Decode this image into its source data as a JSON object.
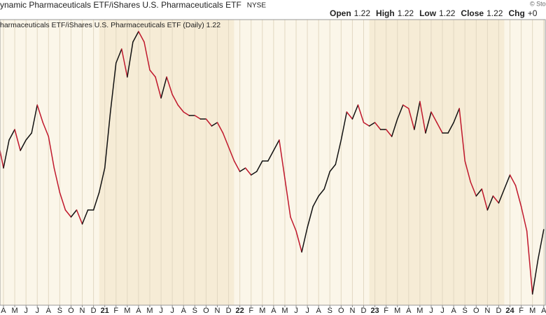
{
  "chart_data": {
    "type": "line",
    "title": "ynamic Pharmaceuticals ETF/iShares U.S. Pharmaceuticals ETF",
    "exchange": "NYSE",
    "quote": [
      {
        "label": "Open",
        "value": 1.22
      },
      {
        "label": "High",
        "value": 1.22
      },
      {
        "label": "Low",
        "value": 1.22
      },
      {
        "label": "Close",
        "value": 1.22
      },
      {
        "label": "Chg",
        "value": "+0"
      }
    ],
    "copyright": "© Sto",
    "legend_text": "harmaceuticals ETF/iShares U.S. Pharmaceuticals ETF (Daily) 1.22",
    "up_color": "#111111",
    "down_color": "#c0182c",
    "x": [
      -0.5,
      0,
      0.5,
      1,
      1.5,
      2,
      2.5,
      3,
      3.5,
      4,
      4.5,
      5,
      5.5,
      6,
      6.5,
      7,
      7.5,
      8,
      8.5,
      9,
      9.5,
      10,
      10.5,
      11,
      11.5,
      12,
      12.5,
      13,
      13.5,
      14,
      14.5,
      15,
      15.5,
      16,
      16.5,
      17,
      17.5,
      18,
      18.5,
      19,
      19.5,
      20,
      20.5,
      21,
      21.5,
      22,
      22.5,
      23,
      23.5,
      24,
      24.5,
      25,
      25.5,
      26,
      26.5,
      27,
      27.5,
      28,
      28.5,
      29,
      29.5,
      30,
      30.5,
      31,
      31.5,
      32,
      32.5,
      33,
      33.5,
      34,
      34.5,
      35,
      35.5,
      36,
      36.5,
      37,
      37.5,
      38,
      38.5,
      39,
      39.5,
      40,
      40.5,
      41,
      41.5,
      42,
      42.5,
      43,
      43.5,
      44,
      44.5,
      45,
      45.5,
      46,
      46.5,
      47,
      47.5,
      48
    ],
    "values": [
      1.348,
      1.308,
      1.348,
      1.363,
      1.333,
      1.348,
      1.358,
      1.398,
      1.373,
      1.353,
      1.308,
      1.273,
      1.248,
      1.238,
      1.248,
      1.228,
      1.248,
      1.248,
      1.273,
      1.308,
      1.388,
      1.458,
      1.478,
      1.438,
      1.488,
      1.503,
      1.488,
      1.448,
      1.438,
      1.408,
      1.438,
      1.413,
      1.398,
      1.388,
      1.383,
      1.383,
      1.378,
      1.378,
      1.368,
      1.373,
      1.358,
      1.338,
      1.318,
      1.303,
      1.308,
      1.298,
      1.303,
      1.318,
      1.318,
      1.333,
      1.348,
      1.293,
      1.238,
      1.218,
      1.188,
      1.223,
      1.253,
      1.268,
      1.278,
      1.303,
      1.313,
      1.348,
      1.388,
      1.378,
      1.398,
      1.373,
      1.368,
      1.373,
      1.363,
      1.363,
      1.353,
      1.378,
      1.398,
      1.393,
      1.363,
      1.403,
      1.358,
      1.388,
      1.373,
      1.358,
      1.358,
      1.373,
      1.393,
      1.318,
      1.288,
      1.268,
      1.278,
      1.248,
      1.268,
      1.258,
      1.278,
      1.298,
      1.283,
      1.253,
      1.218,
      1.128,
      1.178,
      1.22
    ],
    "xlim": [
      -0.31,
      48.14
    ],
    "ylim": [
      1.112,
      1.52
    ],
    "xticks": [
      {
        "value": 0,
        "label": "A"
      },
      {
        "value": 1,
        "label": "M"
      },
      {
        "value": 2,
        "label": "J"
      },
      {
        "value": 3,
        "label": "J"
      },
      {
        "value": 4,
        "label": "A"
      },
      {
        "value": 5,
        "label": "S"
      },
      {
        "value": 6,
        "label": "O"
      },
      {
        "value": 7,
        "label": "N"
      },
      {
        "value": 8,
        "label": "D"
      },
      {
        "value": 9,
        "label": "21"
      },
      {
        "value": 10,
        "label": "F"
      },
      {
        "value": 11,
        "label": "M"
      },
      {
        "value": 12,
        "label": "A"
      },
      {
        "value": 13,
        "label": "M"
      },
      {
        "value": 14,
        "label": "J"
      },
      {
        "value": 15,
        "label": "J"
      },
      {
        "value": 16,
        "label": "A"
      },
      {
        "value": 17,
        "label": "S"
      },
      {
        "value": 18,
        "label": "O"
      },
      {
        "value": 19,
        "label": "N"
      },
      {
        "value": 20,
        "label": "D"
      },
      {
        "value": 21,
        "label": "22"
      },
      {
        "value": 22,
        "label": "F"
      },
      {
        "value": 23,
        "label": "M"
      },
      {
        "value": 24,
        "label": "A"
      },
      {
        "value": 25,
        "label": "M"
      },
      {
        "value": 26,
        "label": "J"
      },
      {
        "value": 27,
        "label": "J"
      },
      {
        "value": 28,
        "label": "A"
      },
      {
        "value": 29,
        "label": "S"
      },
      {
        "value": 30,
        "label": "O"
      },
      {
        "value": 31,
        "label": "N"
      },
      {
        "value": 32,
        "label": "D"
      },
      {
        "value": 33,
        "label": "23"
      },
      {
        "value": 34,
        "label": "F"
      },
      {
        "value": 35,
        "label": "M"
      },
      {
        "value": 36,
        "label": "A"
      },
      {
        "value": 37,
        "label": "M"
      },
      {
        "value": 38,
        "label": "J"
      },
      {
        "value": 39,
        "label": "J"
      },
      {
        "value": 40,
        "label": "A"
      },
      {
        "value": 41,
        "label": "S"
      },
      {
        "value": 42,
        "label": "O"
      },
      {
        "value": 43,
        "label": "N"
      },
      {
        "value": 44,
        "label": "D"
      },
      {
        "value": 45,
        "label": "24"
      },
      {
        "value": 46,
        "label": "F"
      },
      {
        "value": 47,
        "label": "M"
      },
      {
        "value": 48,
        "label": "A"
      }
    ],
    "grid": true
  }
}
